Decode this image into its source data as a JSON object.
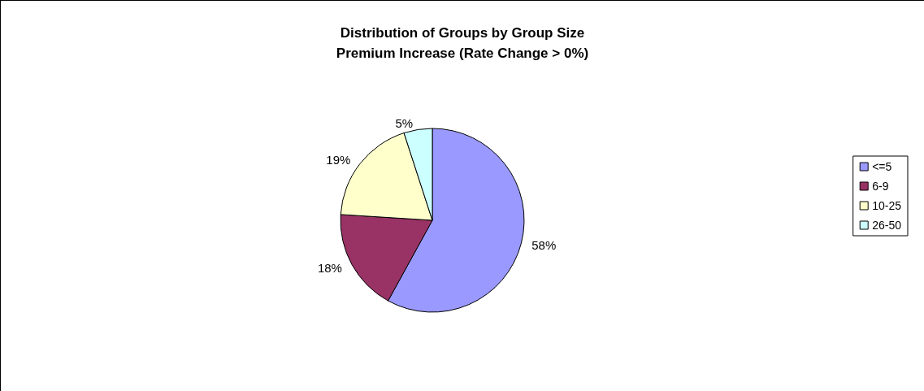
{
  "chart_data": {
    "type": "pie",
    "title": "Distribution of Groups by Group Size",
    "subtitle": "Premium Increase (Rate Change > 0%)",
    "categories": [
      "<=5",
      "6-9",
      "10-25",
      "26-50"
    ],
    "values": [
      58,
      18,
      19,
      5
    ],
    "colors": [
      "#9999ff",
      "#993366",
      "#ffffcc",
      "#ccffff"
    ],
    "value_labels": [
      "58%",
      "18%",
      "19%",
      "5%"
    ],
    "legend": "right"
  }
}
